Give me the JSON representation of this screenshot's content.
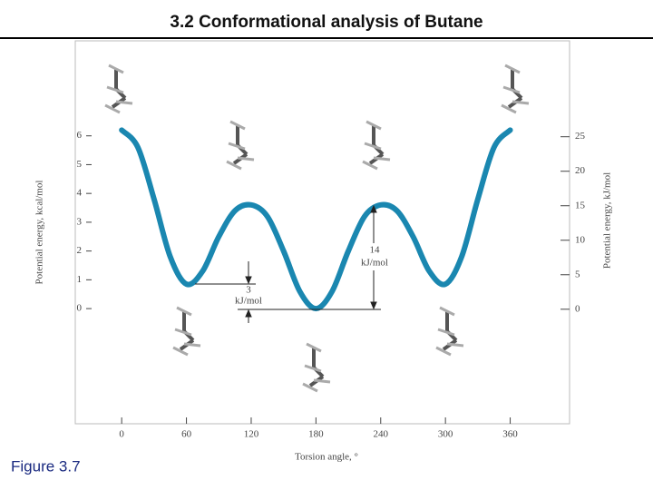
{
  "slide": {
    "title": "3.2 Conformational analysis of Butane",
    "caption": "Figure 3.7"
  },
  "chart_data": {
    "type": "line",
    "x_label": "Torsion angle, °",
    "y_label": "Potential energy, kcal/mol",
    "y2_label": "Potential energy, kJ/mol",
    "x": [
      0,
      15,
      30,
      45,
      60,
      75,
      90,
      105,
      120,
      135,
      150,
      165,
      180,
      195,
      210,
      225,
      240,
      255,
      270,
      285,
      300,
      315,
      330,
      345,
      360
    ],
    "series": [
      {
        "name": "Butane",
        "color": "#1a87b0",
        "values": [
          6.2,
          5.6,
          3.8,
          1.8,
          0.85,
          1.3,
          2.5,
          3.4,
          3.6,
          3.2,
          2.0,
          0.6,
          0,
          0.6,
          2.0,
          3.2,
          3.6,
          3.4,
          2.5,
          1.3,
          0.85,
          1.8,
          3.8,
          5.6,
          6.2
        ]
      }
    ],
    "xlim": [
      -43,
      415
    ],
    "xticks": [
      0,
      60,
      120,
      180,
      240,
      300,
      360
    ],
    "ylim": [
      -4,
      9.3
    ],
    "yticks": [
      0,
      1,
      2,
      3,
      4,
      5,
      6
    ],
    "y2lim": [
      -16.6,
      38.9
    ],
    "y2ticks": [
      0,
      5,
      10,
      15,
      20,
      25
    ],
    "annotations": [
      {
        "lines": [
          "3",
          "kJ/mol"
        ]
      },
      {
        "lines": [
          "14",
          "kJ/mol"
        ]
      }
    ]
  }
}
